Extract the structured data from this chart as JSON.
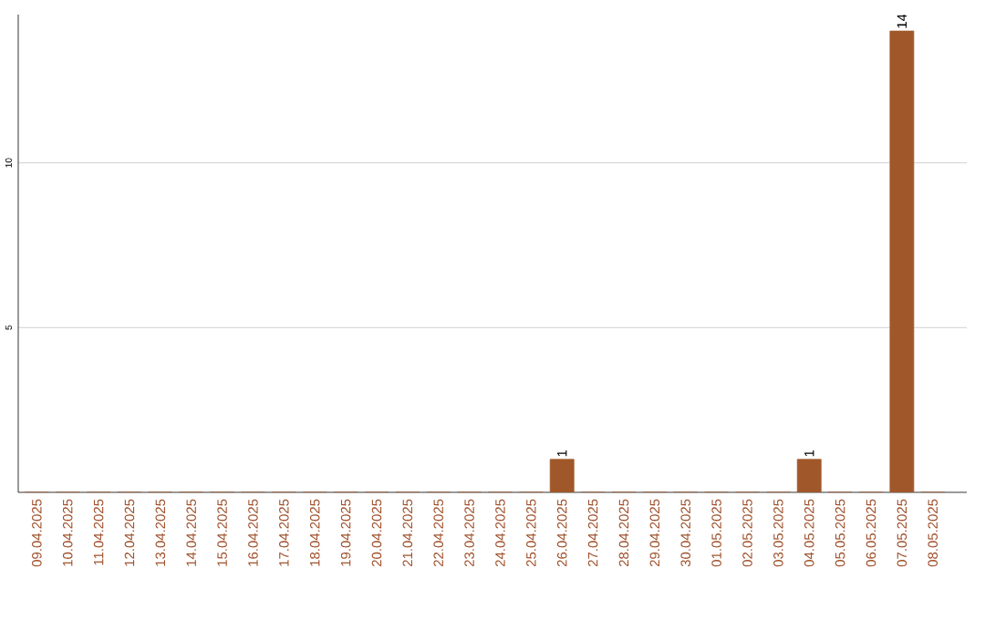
{
  "chart_data": {
    "type": "bar",
    "categories": [
      "09.04.2025",
      "10.04.2025",
      "11.04.2025",
      "12.04.2025",
      "13.04.2025",
      "14.04.2025",
      "15.04.2025",
      "16.04.2025",
      "17.04.2025",
      "18.04.2025",
      "19.04.2025",
      "20.04.2025",
      "21.04.2025",
      "22.04.2025",
      "23.04.2025",
      "24.04.2025",
      "25.04.2025",
      "26.04.2025",
      "27.04.2025",
      "28.04.2025",
      "29.04.2025",
      "30.04.2025",
      "01.05.2025",
      "02.05.2025",
      "03.05.2025",
      "04.05.2025",
      "05.05.2025",
      "06.05.2025",
      "07.05.2025",
      "08.05.2025"
    ],
    "values": [
      0,
      0,
      0,
      0,
      0,
      0,
      0,
      0,
      0,
      0,
      0,
      0,
      0,
      0,
      0,
      0,
      0,
      1,
      0,
      0,
      0,
      0,
      0,
      0,
      0,
      1,
      0,
      0,
      14,
      0
    ],
    "value_labels": [
      null,
      null,
      null,
      null,
      null,
      null,
      null,
      null,
      null,
      null,
      null,
      null,
      null,
      null,
      null,
      null,
      null,
      "1",
      null,
      null,
      null,
      null,
      null,
      null,
      null,
      "1",
      null,
      null,
      "14",
      null
    ],
    "color": "#a0582a",
    "ylim": [
      0,
      14.5
    ],
    "yticks": [
      5,
      10
    ],
    "grid": "y"
  }
}
